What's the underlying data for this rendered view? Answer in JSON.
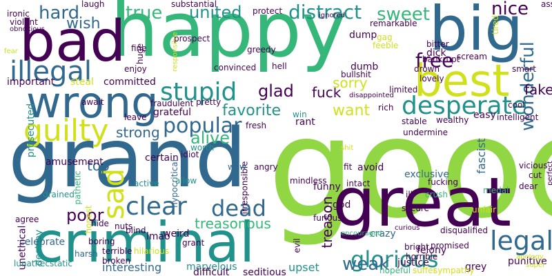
{
  "word_cloud": {
    "background": "#ffffff",
    "palette": [
      "#440154",
      "#31688e",
      "#21918c",
      "#35b779",
      "#90d743",
      "#d0e11c"
    ],
    "words": [
      {
        "text": "good",
        "color": "#90d743"
      },
      {
        "text": "happy",
        "color": "#35b779"
      },
      {
        "text": "grand",
        "color": "#31688e"
      },
      {
        "text": "great",
        "color": "#440154"
      },
      {
        "text": "criminal",
        "color": "#21918c"
      },
      {
        "text": "big",
        "color": "#31688e"
      },
      {
        "text": "bad",
        "color": "#440154"
      },
      {
        "text": "wrong",
        "color": "#31688e"
      },
      {
        "text": "best",
        "color": "#d0e11c"
      },
      {
        "text": "guilty",
        "color": "#d0e11c"
      },
      {
        "text": "illegal",
        "color": "#31688e"
      },
      {
        "text": "desperate",
        "color": "#21918c"
      },
      {
        "text": "stupid",
        "color": "#21918c"
      },
      {
        "text": "legal",
        "color": "#31688e"
      },
      {
        "text": "distract",
        "color": "#21918c"
      },
      {
        "text": "glorious",
        "color": "#21918c"
      },
      {
        "text": "sad",
        "color": "#d0e11c"
      },
      {
        "text": "popular",
        "color": "#31688e"
      },
      {
        "text": "clear",
        "color": "#31688e"
      },
      {
        "text": "free",
        "color": "#440154"
      },
      {
        "text": "wonderful",
        "color": "#31688e"
      },
      {
        "text": "dead",
        "color": "#31688e"
      },
      {
        "text": "hard",
        "color": "#31688e"
      },
      {
        "text": "united",
        "color": "#21918c"
      },
      {
        "text": "true",
        "color": "#35b779"
      },
      {
        "text": "sweet",
        "color": "#35b779"
      },
      {
        "text": "nice",
        "color": "#440154"
      },
      {
        "text": "alive",
        "color": "#35b779"
      },
      {
        "text": "favorite",
        "color": "#21918c"
      },
      {
        "text": "weak",
        "color": "#31688e"
      },
      {
        "text": "glad",
        "color": "#440154"
      },
      {
        "text": "treasonous",
        "color": "#35b779"
      },
      {
        "text": "want",
        "color": "#d0e11c"
      },
      {
        "text": "poor",
        "color": "#440154"
      },
      {
        "text": "wish",
        "color": "#31688e"
      },
      {
        "text": "strong",
        "color": "#31688e"
      },
      {
        "text": "fuck",
        "color": "#440154"
      },
      {
        "text": "sorry",
        "color": "#d0e11c"
      },
      {
        "text": "top",
        "color": "#31688e"
      },
      {
        "text": "fake",
        "color": "#440154"
      },
      {
        "text": "treason",
        "color": "#440154"
      },
      {
        "text": "upset",
        "color": "#21918c"
      },
      {
        "text": "interesting",
        "color": "#31688e"
      },
      {
        "text": "fascist",
        "color": "#31688e"
      },
      {
        "text": "exclusive",
        "color": "#31688e"
      },
      {
        "text": "celebrate",
        "color": "#31688e"
      },
      {
        "text": "amusement",
        "color": "#440154"
      },
      {
        "text": "marvelous",
        "color": "#21918c"
      },
      {
        "text": "difficult",
        "color": "#440154"
      },
      {
        "text": "seditious",
        "color": "#440154"
      },
      {
        "text": "punitive",
        "color": "#440154"
      },
      {
        "text": "justice",
        "color": "#440154"
      },
      {
        "text": "felony",
        "color": "#440154"
      },
      {
        "text": "grey",
        "color": "#440154"
      },
      {
        "text": "crazy",
        "color": "#31688e"
      },
      {
        "text": "weird",
        "color": "#440154"
      },
      {
        "text": "lmao",
        "color": "#440154"
      },
      {
        "text": "certain",
        "color": "#440154"
      },
      {
        "text": "committed",
        "color": "#440154"
      },
      {
        "text": "important",
        "color": "#440154"
      },
      {
        "text": "prosecuted",
        "color": "#21918c"
      },
      {
        "text": "unethical",
        "color": "#440154"
      },
      {
        "text": "destroy",
        "color": "#21918c"
      },
      {
        "text": "ecstatic",
        "color": "#21918c"
      },
      {
        "text": "terrible",
        "color": "#440154"
      },
      {
        "text": "broken",
        "color": "#440154"
      },
      {
        "text": "harsh",
        "color": "#31688e"
      },
      {
        "text": "boring",
        "color": "#440154"
      },
      {
        "text": "hilarious",
        "color": "#d0e11c"
      },
      {
        "text": "grant",
        "color": "#440154"
      },
      {
        "text": "nuts",
        "color": "#440154"
      },
      {
        "text": "hide",
        "color": "#440154"
      },
      {
        "text": "blind",
        "color": "#440154"
      },
      {
        "text": "agree",
        "color": "#440154"
      },
      {
        "text": "drained",
        "color": "#21918c"
      },
      {
        "text": "pathetic",
        "color": "#35b779"
      },
      {
        "text": "honest",
        "color": "#d0e11c"
      },
      {
        "text": "lunatic",
        "color": "#21918c"
      },
      {
        "text": "active",
        "color": "#21918c"
      },
      {
        "text": "allow",
        "color": "#21918c"
      },
      {
        "text": "hypocritical",
        "color": "#31688e"
      },
      {
        "text": "irresponsible",
        "color": "#440154"
      },
      {
        "text": "wow",
        "color": "#31688e"
      },
      {
        "text": "idiot",
        "color": "#440154"
      },
      {
        "text": "worth",
        "color": "#21918c"
      },
      {
        "text": "angry",
        "color": "#440154"
      },
      {
        "text": "fresh",
        "color": "#440154"
      },
      {
        "text": "win",
        "color": "#21918c"
      },
      {
        "text": "rant",
        "color": "#440154"
      },
      {
        "text": "shit",
        "color": "#d0e11c"
      },
      {
        "text": "fit",
        "color": "#440154"
      },
      {
        "text": "avoid",
        "color": "#440154"
      },
      {
        "text": "mindless",
        "color": "#440154"
      },
      {
        "text": "intact",
        "color": "#440154"
      },
      {
        "text": "funny",
        "color": "#440154"
      },
      {
        "text": "god",
        "color": "#440154"
      },
      {
        "text": "furious",
        "color": "#440154"
      },
      {
        "text": "encouraged",
        "color": "#35b779"
      },
      {
        "text": "curious",
        "color": "#440154"
      },
      {
        "text": "disqualified",
        "color": "#440154"
      },
      {
        "text": "promised",
        "color": "#440154"
      },
      {
        "text": "bright",
        "color": "#440154"
      },
      {
        "text": "horrible",
        "color": "#440154"
      },
      {
        "text": "hopeful",
        "color": "#35b779"
      },
      {
        "text": "suffer",
        "color": "#d0e11c"
      },
      {
        "text": "sympathy",
        "color": "#d0e11c"
      },
      {
        "text": "evil",
        "color": "#440154"
      },
      {
        "text": "apology",
        "color": "#d0e11c"
      },
      {
        "text": "super",
        "color": "#d0e11c"
      },
      {
        "text": "perfect",
        "color": "#440154"
      },
      {
        "text": "unfair",
        "color": "#d0e11c"
      },
      {
        "text": "medal",
        "color": "#35b779"
      },
      {
        "text": "cut",
        "color": "#440154"
      },
      {
        "text": "vicious",
        "color": "#440154"
      },
      {
        "text": "ill",
        "color": "#440154"
      },
      {
        "text": "secure",
        "color": "#440154"
      },
      {
        "text": "crush",
        "color": "#35b779"
      },
      {
        "text": "dear",
        "color": "#440154"
      },
      {
        "text": "fucking",
        "color": "#440154"
      },
      {
        "text": "undermine",
        "color": "#440154"
      },
      {
        "text": "stable",
        "color": "#440154"
      },
      {
        "text": "wealthy",
        "color": "#440154"
      },
      {
        "text": "easy",
        "color": "#440154"
      },
      {
        "text": "intelligent",
        "color": "#440154"
      },
      {
        "text": "rich",
        "color": "#440154"
      },
      {
        "text": "cool",
        "color": "#440154"
      },
      {
        "text": "disappointed",
        "color": "#440154"
      },
      {
        "text": "limited",
        "color": "#440154"
      },
      {
        "text": "lovely",
        "color": "#440154"
      },
      {
        "text": "drown",
        "color": "#440154"
      },
      {
        "text": "smart",
        "color": "#440154"
      },
      {
        "text": "scream",
        "color": "#440154"
      },
      {
        "text": "bankrupt",
        "color": "#440154"
      },
      {
        "text": "dick",
        "color": "#440154"
      },
      {
        "text": "bitter",
        "color": "#440154"
      },
      {
        "text": "gag",
        "color": "#d0e11c"
      },
      {
        "text": "feeble",
        "color": "#d0e11c"
      },
      {
        "text": "tired",
        "color": "#d0e11c"
      },
      {
        "text": "remarkable",
        "color": "#440154"
      },
      {
        "text": "dump",
        "color": "#440154"
      },
      {
        "text": "ass",
        "color": "#440154"
      },
      {
        "text": "ignored",
        "color": "#440154"
      },
      {
        "text": "protect",
        "color": "#440154"
      },
      {
        "text": "substantial",
        "color": "#440154"
      },
      {
        "text": "laugh",
        "color": "#440154"
      },
      {
        "text": "ironic",
        "color": "#440154"
      },
      {
        "text": "violent",
        "color": "#440154"
      },
      {
        "text": "obnoxious",
        "color": "#440154"
      },
      {
        "text": "fear",
        "color": "#d0e11c"
      },
      {
        "text": "fine",
        "color": "#440154"
      },
      {
        "text": "huge",
        "color": "#440154"
      },
      {
        "text": "enjoy",
        "color": "#440154"
      },
      {
        "text": "responsible",
        "color": "#d0e11c"
      },
      {
        "text": "prospect",
        "color": "#440154"
      },
      {
        "text": "greedy",
        "color": "#440154"
      },
      {
        "text": "convinced",
        "color": "#440154"
      },
      {
        "text": "hell",
        "color": "#440154"
      },
      {
        "text": "bullshit",
        "color": "#440154"
      },
      {
        "text": "pretty",
        "color": "#440154"
      },
      {
        "text": "dumb",
        "color": "#440154"
      },
      {
        "text": "fraudulent",
        "color": "#440154"
      },
      {
        "text": "grateful",
        "color": "#440154"
      },
      {
        "text": "steal",
        "color": "#d0e11c"
      },
      {
        "text": "await",
        "color": "#440154"
      },
      {
        "text": "leave",
        "color": "#440154"
      }
    ]
  }
}
